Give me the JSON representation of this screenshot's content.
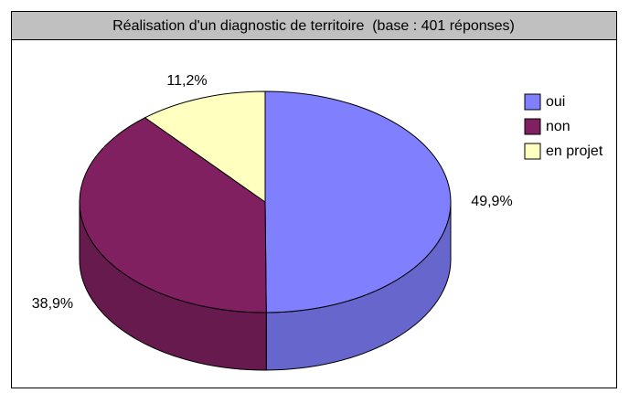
{
  "chart_data": {
    "type": "pie",
    "title": "Réalisation d'un diagnostic de territoire  (base : 401 réponses)",
    "categories": [
      "oui",
      "non",
      "en projet"
    ],
    "values": [
      49.9,
      38.9,
      11.2
    ],
    "value_labels": [
      "49,9%",
      "38,9%",
      "11,2%"
    ],
    "colors": [
      "#8080ff",
      "#802060",
      "#ffffc0"
    ]
  }
}
